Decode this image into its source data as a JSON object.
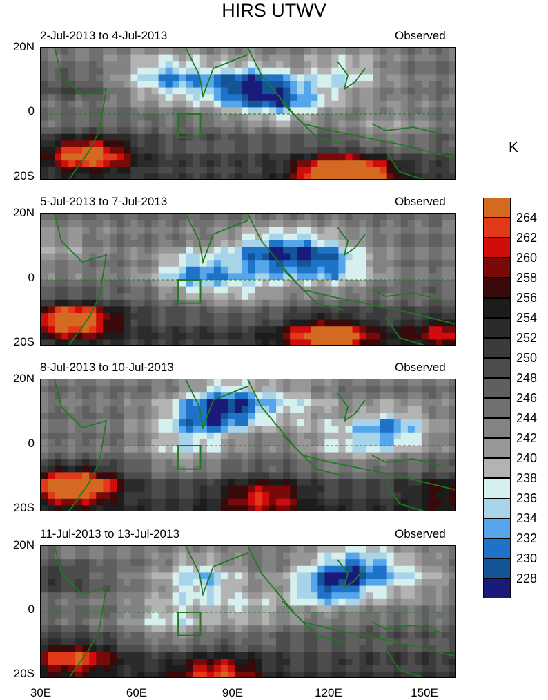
{
  "title": "HIRS UTWV",
  "unit": "K",
  "panels": [
    {
      "left_label": "2-Jul-2013 to 4-Jul-2013",
      "right_label": "Observed"
    },
    {
      "left_label": "5-Jul-2013 to 7-Jul-2013",
      "right_label": "Observed"
    },
    {
      "left_label": "8-Jul-2013 to 10-Jul-2013",
      "right_label": "Observed"
    },
    {
      "left_label": "11-Jul-2013 to 13-Jul-2013",
      "right_label": "Observed"
    }
  ],
  "y_ticks": [
    "20N",
    "0",
    "20S"
  ],
  "x_ticks": [
    "30E",
    "60E",
    "90E",
    "120E",
    "150E"
  ],
  "chart_data": {
    "type": "heatmap",
    "title": "HIRS UTWV",
    "x_range": [
      30,
      160
    ],
    "y_range": [
      -20,
      20
    ],
    "x_ticks": [
      30,
      60,
      90,
      120,
      150
    ],
    "y_ticks": [
      20,
      0,
      -20
    ],
    "colorbar": {
      "unit": "K",
      "levels": [
        228,
        230,
        232,
        234,
        236,
        238,
        240,
        242,
        244,
        246,
        248,
        250,
        252,
        254,
        256,
        258,
        260,
        262,
        264
      ],
      "colors": [
        "#1a1a7a",
        "#135597",
        "#1e73c9",
        "#55a6ea",
        "#a8d4ea",
        "#d6efef",
        "#b3b3b3",
        "#979797",
        "#838383",
        "#707070",
        "#5f5f5f",
        "#4c4c4c",
        "#3b3b3b",
        "#2b2b2b",
        "#1c1c1c",
        "#3a0a0a",
        "#7a0a0a",
        "#d00c0c",
        "#e2391a",
        "#d46a22"
      ]
    }
  }
}
